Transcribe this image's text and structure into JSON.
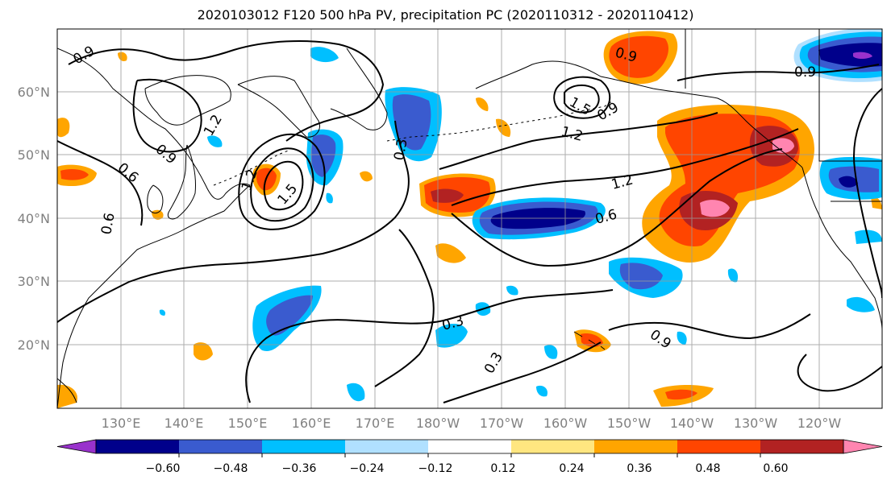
{
  "title": "2020103012 F120 500 hPa PV, precipitation PC (2020110312 - 2020110412)",
  "lat_labels": [
    "60°N",
    "50°N",
    "40°N",
    "30°N",
    "20°N"
  ],
  "lon_labels": [
    "130°E",
    "140°E",
    "150°E",
    "160°E",
    "170°E",
    "180°W",
    "170°W",
    "160°W",
    "150°W",
    "140°W",
    "130°W",
    "120°W"
  ],
  "contour_labels": [
    "0.9",
    "0.6",
    "0.9",
    "1.2",
    "1.2",
    "1.5",
    "0.3",
    "0.6",
    "0.9",
    "1.2",
    "1.5",
    "0.9",
    "0.9",
    "1.2",
    "0.6",
    "0.3",
    "0.3",
    "0.9"
  ],
  "colorbar": {
    "ticks": [
      "−0.60",
      "−0.48",
      "−0.36",
      "−0.24",
      "−0.12",
      "0.12",
      "0.24",
      "0.36",
      "0.48",
      "0.60"
    ],
    "colors": [
      "#9932CC",
      "#00008B",
      "#3A5BCF",
      "#00BFFF",
      "#B0E0FF",
      "#FFFFFF",
      "#FFE680",
      "#FFA500",
      "#FF4500",
      "#B22222",
      "#FF85B0"
    ]
  }
}
